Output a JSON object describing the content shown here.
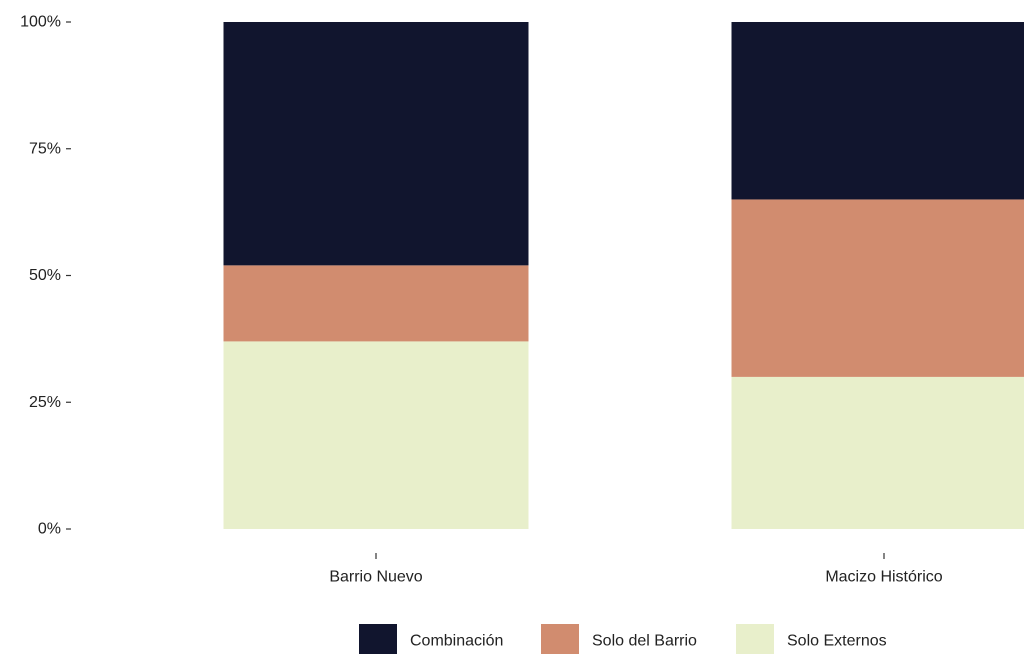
{
  "chart_data": {
    "type": "bar",
    "stacked": "percent",
    "categories": [
      "Barrio Nuevo",
      "Macizo Histórico"
    ],
    "series": [
      {
        "name": "Solo Externos",
        "values": [
          37,
          30
        ],
        "color": "#E8EFCB"
      },
      {
        "name": "Solo del Barrio",
        "values": [
          15,
          35
        ],
        "color": "#D18C6F"
      },
      {
        "name": "Combinación",
        "values": [
          48,
          35
        ],
        "color": "#11152E"
      }
    ],
    "legend_order": [
      "Combinación",
      "Solo del Barrio",
      "Solo Externos"
    ],
    "y_ticks": [
      "0%",
      "25%",
      "50%",
      "75%",
      "100%"
    ],
    "ylim": [
      0,
      100
    ],
    "grid": false,
    "legend_position": "bottom",
    "title": "",
    "xlabel": "",
    "ylabel": ""
  }
}
